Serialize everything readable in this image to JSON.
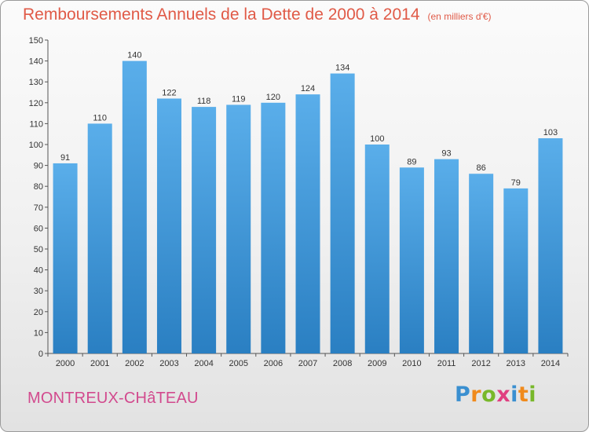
{
  "header": {
    "title": "Remboursements Annuels de la Dette de 2000 à 2014",
    "subtitle": "(en milliers d'€)"
  },
  "footer": {
    "commune": "MONTREUX-CHâTEAU",
    "brand": [
      "P",
      "r",
      "o",
      "x",
      "i",
      "t",
      "i"
    ]
  },
  "colors": {
    "title": "#e05a47",
    "bar_top": "#5aaeea",
    "bar_bottom": "#2a7fc2",
    "commune": "#d24a8e",
    "brand": [
      "#3a8fd0",
      "#f08a1c",
      "#78b82a",
      "#e04080",
      "#3a8fd0",
      "#f08a1c",
      "#78b82a"
    ]
  },
  "chart_data": {
    "type": "bar",
    "categories": [
      "2000",
      "2001",
      "2002",
      "2003",
      "2004",
      "2005",
      "2006",
      "2007",
      "2008",
      "2009",
      "2010",
      "2011",
      "2012",
      "2013",
      "2014"
    ],
    "values": [
      91,
      110,
      140,
      122,
      118,
      119,
      120,
      124,
      134,
      100,
      89,
      93,
      86,
      79,
      103
    ],
    "ylim": [
      0,
      150
    ],
    "yticks": [
      0,
      10,
      20,
      30,
      40,
      50,
      60,
      70,
      80,
      90,
      100,
      110,
      120,
      130,
      140,
      150
    ],
    "grid": false,
    "data_labels": true
  }
}
